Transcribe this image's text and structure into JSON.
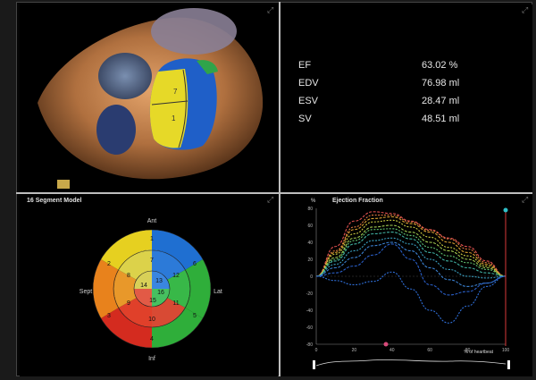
{
  "metrics": {
    "rows": [
      {
        "label": "EF",
        "value": "63.02 %"
      },
      {
        "label": "EDV",
        "value": "76.98 ml"
      },
      {
        "label": "ESV",
        "value": "28.47 ml"
      },
      {
        "label": "SV",
        "value": "48.51 ml"
      }
    ]
  },
  "volume_view": {
    "segment_labels": [
      "7",
      "1"
    ]
  },
  "bullseye": {
    "title": "16 Segment Model",
    "orientation": {
      "top": "Ant",
      "bottom": "Inf",
      "left": "Sept",
      "right": "Lat"
    },
    "segment_labels": [
      "1",
      "2",
      "3",
      "4",
      "5",
      "6",
      "7",
      "8",
      "9",
      "10",
      "11",
      "12",
      "13",
      "14",
      "15",
      "16"
    ],
    "colors": {
      "blue": "#1f6fd1",
      "green": "#2fae3a",
      "red": "#d42b1f",
      "orange": "#e8821c",
      "yellow": "#e6d020"
    }
  },
  "ef_chart": {
    "title": "Ejection Fraction",
    "y_unit": "%",
    "y_ticks": [
      "80",
      "60",
      "40",
      "20",
      "0",
      "-20",
      "-40",
      "-60",
      "-80"
    ],
    "x_ticks": [
      "0",
      "20",
      "40",
      "60",
      "80",
      "100"
    ],
    "x_label": "% of heartbeat"
  },
  "chart_data": {
    "type": "line",
    "title": "Ejection Fraction",
    "ylabel": "%",
    "xlabel": "% of heartbeat",
    "xlim": [
      0,
      100
    ],
    "ylim": [
      -80,
      80
    ],
    "x": [
      0,
      10,
      20,
      30,
      40,
      50,
      60,
      70,
      80,
      90,
      100
    ],
    "series": [
      {
        "values": [
          0,
          35,
          65,
          76,
          74,
          65,
          55,
          45,
          35,
          18,
          0
        ],
        "color": "#e05050"
      },
      {
        "values": [
          0,
          30,
          58,
          72,
          72,
          64,
          54,
          44,
          32,
          16,
          0
        ],
        "color": "#e07a40"
      },
      {
        "values": [
          0,
          28,
          55,
          68,
          70,
          62,
          52,
          40,
          28,
          14,
          0
        ],
        "color": "#d8a030"
      },
      {
        "values": [
          0,
          26,
          50,
          64,
          66,
          58,
          46,
          34,
          24,
          12,
          0
        ],
        "color": "#c8c840"
      },
      {
        "values": [
          0,
          22,
          45,
          58,
          60,
          52,
          40,
          30,
          20,
          10,
          0
        ],
        "color": "#a0c850"
      },
      {
        "values": [
          0,
          20,
          42,
          55,
          56,
          48,
          34,
          24,
          16,
          8,
          0
        ],
        "color": "#60c070"
      },
      {
        "values": [
          0,
          18,
          38,
          50,
          52,
          44,
          28,
          18,
          10,
          4,
          0
        ],
        "color": "#40b0a0"
      },
      {
        "values": [
          0,
          14,
          30,
          42,
          45,
          38,
          20,
          8,
          0,
          -2,
          0
        ],
        "color": "#3aa0c0"
      },
      {
        "values": [
          0,
          10,
          22,
          36,
          40,
          30,
          10,
          -4,
          -12,
          -8,
          0
        ],
        "color": "#3a80d0"
      },
      {
        "values": [
          0,
          -5,
          -10,
          -6,
          5,
          -15,
          -40,
          -55,
          -35,
          -12,
          0
        ],
        "color": "#2f6fd8"
      },
      {
        "values": [
          0,
          4,
          12,
          25,
          38,
          20,
          -10,
          -22,
          -18,
          -8,
          0
        ],
        "color": "#2a5fc8"
      }
    ]
  }
}
